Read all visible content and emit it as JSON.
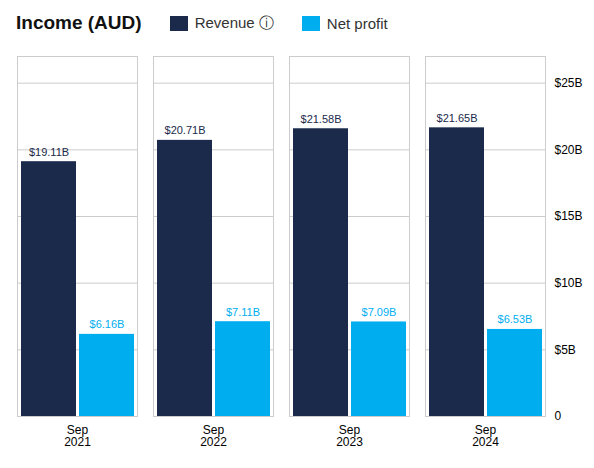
{
  "chart_data": {
    "type": "bar",
    "title": "Income (AUD)",
    "categories": [
      "Sep\n2021",
      "Sep\n2022",
      "Sep\n2023",
      "Sep\n2024"
    ],
    "series": [
      {
        "name": "Revenue ⓘ",
        "color": "#1b2a4a",
        "values": [
          19.11,
          20.71,
          21.58,
          21.65
        ],
        "value_labels": [
          "$19.11B",
          "$20.71B",
          "$21.58B",
          "$21.65B"
        ]
      },
      {
        "name": "Net profit",
        "color": "#00aeef",
        "values": [
          6.16,
          7.11,
          7.09,
          6.53
        ],
        "value_labels": [
          "$6.16B",
          "$7.11B",
          "$7.09B",
          "$6.53B"
        ]
      }
    ],
    "ylim": [
      0,
      27
    ],
    "yticks": [
      0,
      {
        "value": 5,
        "label": "$5B"
      },
      {
        "value": 10,
        "label": "$10B"
      },
      {
        "value": 15,
        "label": "$15B"
      },
      {
        "value": 20,
        "label": "$20B"
      },
      {
        "value": 25,
        "label": "$25B"
      }
    ],
    "grid": true,
    "legend": "top",
    "data_labels": true
  }
}
